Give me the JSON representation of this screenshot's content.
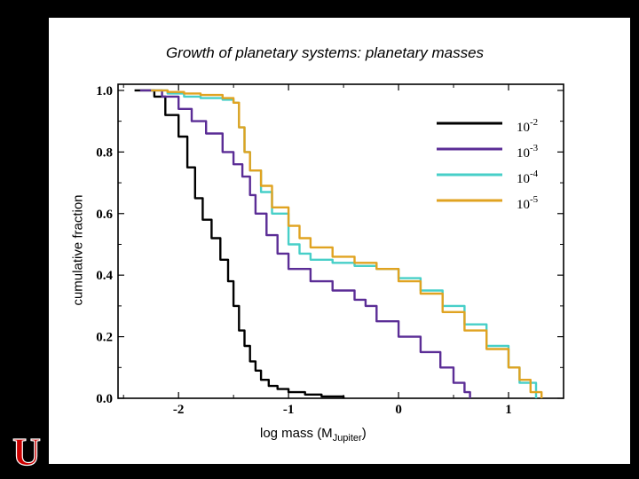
{
  "slide": {
    "logo_letter": "U"
  },
  "chart_data": {
    "type": "line",
    "title": "Growth of planetary systems:  planetary masses",
    "xlabel_main": "log mass (M",
    "xlabel_sub": "Jupiter",
    "xlabel_close": ")",
    "ylabel": "cumulative fraction",
    "xlim": [
      -2.55,
      1.5
    ],
    "ylim": [
      0,
      1.02
    ],
    "xticks": [
      -2,
      -1,
      0,
      1
    ],
    "yticks": [
      0.0,
      0.2,
      0.4,
      0.6,
      0.8,
      1.0
    ],
    "grid": false,
    "legend_position": "top-right",
    "series": [
      {
        "name": "10-2",
        "label_base": "10",
        "label_exp": "-2",
        "color": "#000000",
        "x": [
          -2.4,
          -2.22,
          -2.12,
          -2.0,
          -1.92,
          -1.85,
          -1.78,
          -1.7,
          -1.62,
          -1.55,
          -1.5,
          -1.45,
          -1.4,
          -1.35,
          -1.3,
          -1.25,
          -1.18,
          -1.1,
          -1.0,
          -0.85,
          -0.7,
          -0.5
        ],
        "y": [
          1.0,
          0.98,
          0.92,
          0.85,
          0.75,
          0.65,
          0.58,
          0.52,
          0.45,
          0.38,
          0.3,
          0.22,
          0.17,
          0.12,
          0.09,
          0.06,
          0.04,
          0.03,
          0.02,
          0.012,
          0.006,
          0.0
        ]
      },
      {
        "name": "10-3",
        "label_base": "10",
        "label_exp": "-3",
        "color": "#5b2d96",
        "x": [
          -2.35,
          -2.15,
          -2.0,
          -1.88,
          -1.75,
          -1.6,
          -1.5,
          -1.42,
          -1.35,
          -1.3,
          -1.2,
          -1.1,
          -1.0,
          -0.8,
          -0.6,
          -0.4,
          -0.3,
          -0.2,
          0.0,
          0.2,
          0.38,
          0.5,
          0.6,
          0.65
        ],
        "y": [
          1.0,
          0.98,
          0.94,
          0.9,
          0.86,
          0.8,
          0.76,
          0.72,
          0.66,
          0.6,
          0.53,
          0.47,
          0.42,
          0.38,
          0.35,
          0.32,
          0.3,
          0.25,
          0.2,
          0.15,
          0.1,
          0.05,
          0.02,
          0.0
        ]
      },
      {
        "name": "10-4",
        "label_base": "10",
        "label_exp": "-4",
        "color": "#47cfc8",
        "x": [
          -2.25,
          -2.1,
          -1.95,
          -1.8,
          -1.6,
          -1.5,
          -1.45,
          -1.4,
          -1.35,
          -1.25,
          -1.15,
          -1.0,
          -0.9,
          -0.8,
          -0.6,
          -0.4,
          -0.2,
          0.0,
          0.2,
          0.4,
          0.6,
          0.8,
          1.0,
          1.1,
          1.25
        ],
        "y": [
          1.0,
          0.99,
          0.98,
          0.975,
          0.97,
          0.96,
          0.88,
          0.8,
          0.74,
          0.67,
          0.6,
          0.5,
          0.47,
          0.45,
          0.44,
          0.43,
          0.42,
          0.39,
          0.35,
          0.3,
          0.24,
          0.17,
          0.1,
          0.05,
          0.0
        ]
      },
      {
        "name": "10-5",
        "label_base": "10",
        "label_exp": "-5",
        "color": "#e0a321",
        "x": [
          -2.25,
          -2.1,
          -1.95,
          -1.8,
          -1.6,
          -1.5,
          -1.45,
          -1.4,
          -1.35,
          -1.25,
          -1.15,
          -1.0,
          -0.9,
          -0.8,
          -0.6,
          -0.4,
          -0.2,
          0.0,
          0.2,
          0.4,
          0.6,
          0.8,
          1.0,
          1.1,
          1.2,
          1.3
        ],
        "y": [
          1.0,
          0.995,
          0.99,
          0.985,
          0.975,
          0.96,
          0.88,
          0.8,
          0.74,
          0.69,
          0.62,
          0.56,
          0.52,
          0.49,
          0.46,
          0.44,
          0.42,
          0.38,
          0.34,
          0.28,
          0.22,
          0.16,
          0.1,
          0.06,
          0.02,
          0.0
        ]
      }
    ]
  }
}
